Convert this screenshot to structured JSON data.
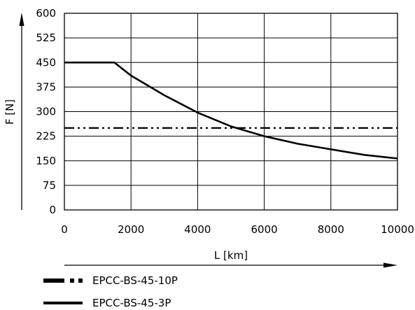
{
  "chart_data": {
    "type": "line",
    "title": "",
    "xlabel": "L [km]",
    "ylabel": "F [N]",
    "xlim": [
      0,
      10000
    ],
    "ylim": [
      0,
      600
    ],
    "xticks": [
      0,
      2000,
      4000,
      6000,
      8000,
      10000
    ],
    "yticks": [
      0,
      75,
      150,
      225,
      300,
      375,
      450,
      525,
      600
    ],
    "grid": true,
    "legend_position": "bottom-left",
    "series": [
      {
        "name": "EPCC-BS-45-10P",
        "line_style": "dash-dot-dot",
        "color": "#000000",
        "x": [
          0,
          10000
        ],
        "y": [
          250,
          250
        ]
      },
      {
        "name": "EPCC-BS-45-3P",
        "line_style": "solid",
        "color": "#000000",
        "x": [
          0,
          1500,
          2000,
          3000,
          4000,
          5000,
          6000,
          7000,
          8000,
          9000,
          10000
        ],
        "y": [
          450,
          450,
          410,
          350,
          297,
          255,
          225,
          202,
          185,
          168,
          157
        ]
      }
    ]
  }
}
